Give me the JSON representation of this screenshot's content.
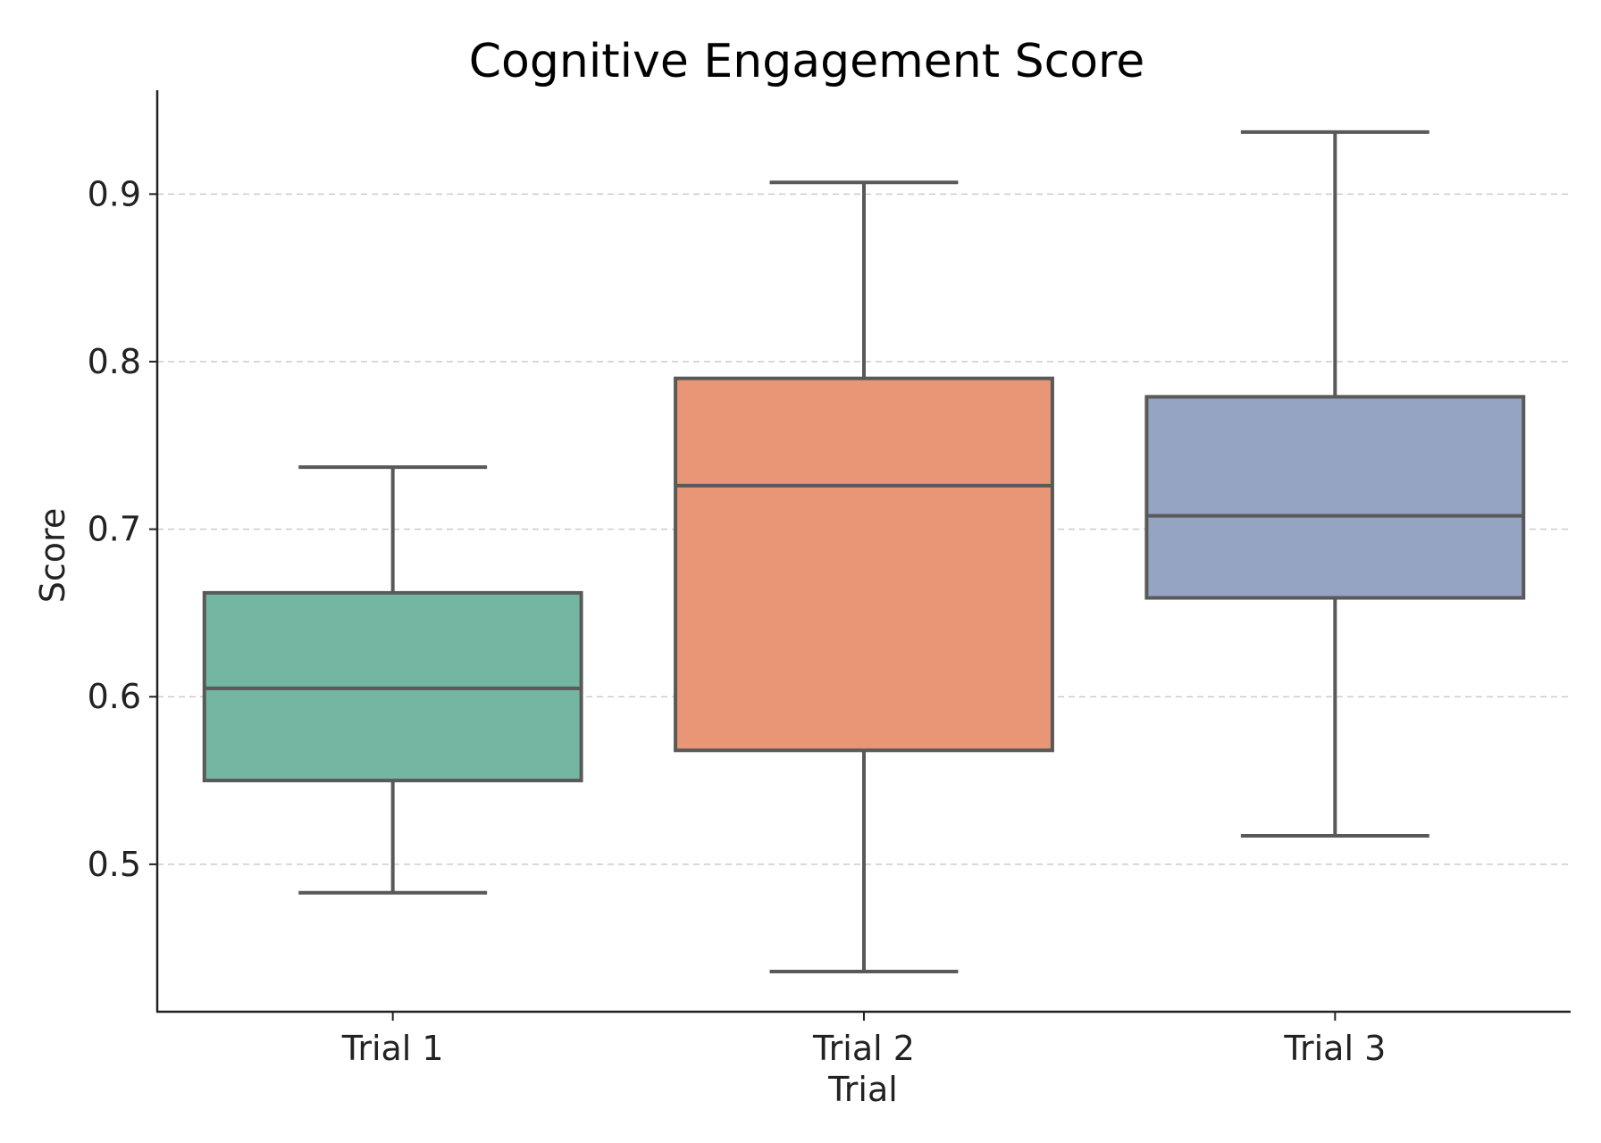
{
  "chart_data": {
    "type": "box",
    "title": "Cognitive Engagement Score",
    "xlabel": "Trial",
    "ylabel": "Score",
    "ylim": [
      0.412,
      0.962
    ],
    "yticks": [
      0.5,
      0.6,
      0.7,
      0.8,
      0.9
    ],
    "ytick_labels": [
      "0.5",
      "0.6",
      "0.7",
      "0.8",
      "0.9"
    ],
    "grid": true,
    "categories": [
      "Trial 1",
      "Trial 2",
      "Trial 3"
    ],
    "boxes": [
      {
        "name": "Trial 1",
        "whisker_low": 0.483,
        "q1": 0.55,
        "median": 0.605,
        "q3": 0.662,
        "whisker_high": 0.737,
        "color": "#73b6a1"
      },
      {
        "name": "Trial 2",
        "whisker_low": 0.436,
        "q1": 0.568,
        "median": 0.726,
        "q3": 0.79,
        "whisker_high": 0.907,
        "color": "#e89676"
      },
      {
        "name": "Trial 3",
        "whisker_low": 0.517,
        "q1": 0.659,
        "median": 0.708,
        "q3": 0.779,
        "whisker_high": 0.937,
        "color": "#95a4c2"
      }
    ]
  }
}
